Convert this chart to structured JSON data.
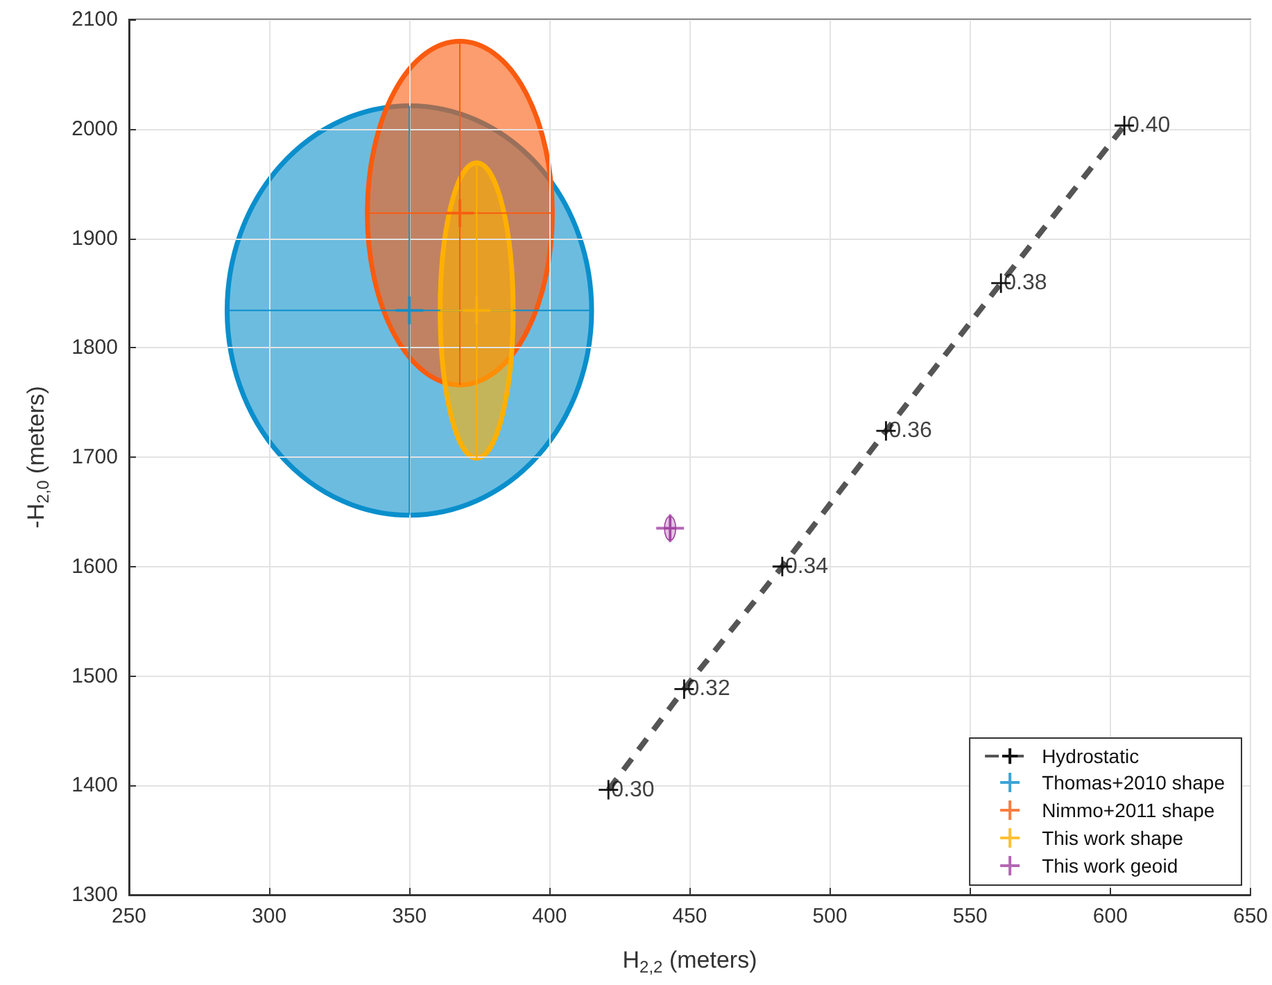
{
  "chart_data": {
    "type": "scatter",
    "xlabel": "H$_{2,2}$ (meters)",
    "ylabel": "-H$_{2,0}$ (meters)",
    "xlim": [
      250,
      650
    ],
    "ylim": [
      1300,
      2100
    ],
    "xticks": [
      250,
      300,
      350,
      400,
      450,
      500,
      550,
      600,
      650
    ],
    "yticks": [
      1300,
      1400,
      1500,
      1600,
      1700,
      1800,
      1900,
      2000,
      2100
    ],
    "grid": true,
    "legend": "bottom right",
    "marker": "cross",
    "annotations": [
      {
        "text": "0.30",
        "x": 421,
        "y": 1396
      },
      {
        "text": "0.32",
        "x": 448,
        "y": 1488
      },
      {
        "text": "0.34",
        "x": 483,
        "y": 1600
      },
      {
        "text": "0.36",
        "x": 520,
        "y": 1724
      },
      {
        "text": "0.38",
        "x": 561,
        "y": 1859
      },
      {
        "text": "0.40",
        "x": 605,
        "y": 2003
      }
    ],
    "series": [
      {
        "name": "Hydrostatic",
        "type": "line",
        "line_style": "dashed",
        "color": "#555555",
        "x": [
          421,
          448,
          483,
          520,
          561,
          605
        ],
        "values": [
          1396,
          1488,
          1600,
          1724,
          1859,
          2003
        ]
      },
      {
        "name": "Thomas+2010 shape",
        "color": "#0a8fcc",
        "x": [
          350
        ],
        "values": [
          1834
        ],
        "xerrors": [
          65
        ],
        "errors": [
          187
        ]
      },
      {
        "name": "Nimmo+2011 shape",
        "color": "#fa5b0f",
        "x": [
          368
        ],
        "values": [
          1923
        ],
        "xerrors": [
          33
        ],
        "errors": [
          157
        ]
      },
      {
        "name": "This work shape",
        "color": "#ffb000",
        "x": [
          374
        ],
        "values": [
          1834
        ],
        "xerrors": [
          13
        ],
        "errors": [
          135
        ]
      },
      {
        "name": "This work geoid",
        "color": "#a040a0",
        "x": [
          443
        ],
        "values": [
          1635
        ],
        "xerrors": [
          2
        ],
        "errors": [
          11
        ]
      }
    ]
  }
}
